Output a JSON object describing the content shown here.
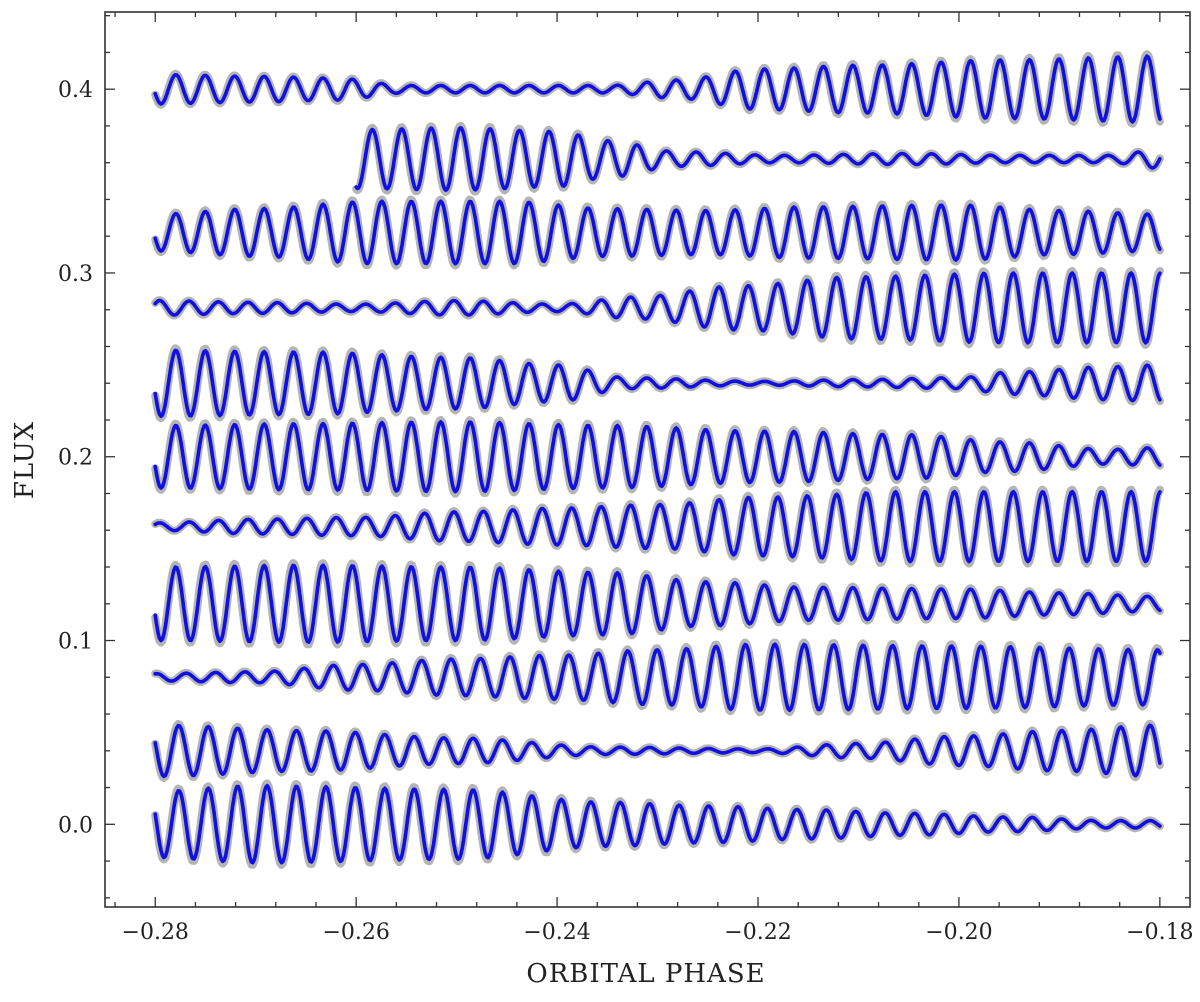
{
  "chart_data": {
    "type": "line",
    "title": "",
    "xlabel": "ORBITAL PHASE",
    "ylabel": "FLUX",
    "xlim": [
      -0.285,
      -0.177
    ],
    "ylim": [
      -0.045,
      0.442
    ],
    "x_ticks": [
      -0.28,
      -0.26,
      -0.24,
      -0.22,
      -0.2,
      -0.18
    ],
    "x_tick_labels": [
      "−0.28",
      "−0.26",
      "−0.24",
      "−0.22",
      "−0.20",
      "−0.18"
    ],
    "y_ticks": [
      0.0,
      0.1,
      0.2,
      0.3,
      0.4
    ],
    "y_tick_labels": [
      "0.0",
      "0.1",
      "0.2",
      "0.3",
      "0.4"
    ],
    "grid": false,
    "legend": "none",
    "colors": {
      "data": "#1010e0",
      "model": "#a8a8a8"
    },
    "oscillation_period": 0.00293,
    "series": [
      {
        "offset": 0.0,
        "x_start": -0.28,
        "x_end": -0.18,
        "phase": 0.45,
        "amp_knots": [
          [
            -0.28,
            0.018
          ],
          [
            -0.27,
            0.021
          ],
          [
            -0.25,
            0.019
          ],
          [
            -0.235,
            0.012
          ],
          [
            -0.225,
            0.01
          ],
          [
            -0.215,
            0.008
          ],
          [
            -0.205,
            0.006
          ],
          [
            -0.195,
            0.004
          ],
          [
            -0.185,
            0.002
          ],
          [
            -0.18,
            0.002
          ]
        ]
      },
      {
        "offset": 0.04,
        "x_start": -0.28,
        "x_end": -0.18,
        "phase": 0.45,
        "amp_knots": [
          [
            -0.28,
            0.014
          ],
          [
            -0.265,
            0.011
          ],
          [
            -0.25,
            0.007
          ],
          [
            -0.235,
            0.002
          ],
          [
            -0.22,
            0.001
          ],
          [
            -0.21,
            0.004
          ],
          [
            -0.2,
            0.008
          ],
          [
            -0.19,
            0.011
          ],
          [
            -0.18,
            0.014
          ]
        ]
      },
      {
        "offset": 0.08,
        "x_start": -0.28,
        "x_end": -0.18,
        "phase": 0.2,
        "amp_knots": [
          [
            -0.28,
            0.002
          ],
          [
            -0.27,
            0.003
          ],
          [
            -0.26,
            0.007
          ],
          [
            -0.25,
            0.01
          ],
          [
            -0.24,
            0.012
          ],
          [
            -0.23,
            0.015
          ],
          [
            -0.22,
            0.018
          ],
          [
            -0.2,
            0.017
          ],
          [
            -0.18,
            0.015
          ]
        ]
      },
      {
        "offset": 0.12,
        "x_start": -0.28,
        "x_end": -0.18,
        "phase": 0.55,
        "amp_knots": [
          [
            -0.28,
            0.02
          ],
          [
            -0.265,
            0.021
          ],
          [
            -0.25,
            0.02
          ],
          [
            -0.235,
            0.017
          ],
          [
            -0.225,
            0.012
          ],
          [
            -0.215,
            0.009
          ],
          [
            -0.2,
            0.008
          ],
          [
            -0.19,
            0.006
          ],
          [
            -0.18,
            0.004
          ]
        ]
      },
      {
        "offset": 0.162,
        "x_start": -0.28,
        "x_end": -0.18,
        "phase": 0.1,
        "amp_knots": [
          [
            -0.28,
            0.002
          ],
          [
            -0.27,
            0.004
          ],
          [
            -0.26,
            0.005
          ],
          [
            -0.25,
            0.008
          ],
          [
            -0.24,
            0.01
          ],
          [
            -0.23,
            0.012
          ],
          [
            -0.22,
            0.016
          ],
          [
            -0.205,
            0.019
          ],
          [
            -0.18,
            0.019
          ]
        ]
      },
      {
        "offset": 0.2,
        "x_start": -0.28,
        "x_end": -0.18,
        "phase": 0.55,
        "amp_knots": [
          [
            -0.28,
            0.017
          ],
          [
            -0.265,
            0.018
          ],
          [
            -0.25,
            0.019
          ],
          [
            -0.235,
            0.017
          ],
          [
            -0.22,
            0.014
          ],
          [
            -0.205,
            0.012
          ],
          [
            -0.195,
            0.008
          ],
          [
            -0.185,
            0.004
          ],
          [
            -0.18,
            0.005
          ]
        ]
      },
      {
        "offset": 0.24,
        "x_start": -0.28,
        "x_end": -0.18,
        "phase": 0.55,
        "amp_knots": [
          [
            -0.28,
            0.018
          ],
          [
            -0.265,
            0.017
          ],
          [
            -0.25,
            0.014
          ],
          [
            -0.24,
            0.01
          ],
          [
            -0.233,
            0.003
          ],
          [
            -0.22,
            0.001
          ],
          [
            -0.21,
            0.002
          ],
          [
            -0.2,
            0.003
          ],
          [
            -0.195,
            0.006
          ],
          [
            -0.185,
            0.009
          ],
          [
            -0.18,
            0.01
          ]
        ]
      },
      {
        "offset": 0.281,
        "x_start": -0.28,
        "x_end": -0.18,
        "phase": 0.1,
        "amp_knots": [
          [
            -0.28,
            0.004
          ],
          [
            -0.27,
            0.003
          ],
          [
            -0.26,
            0.002
          ],
          [
            -0.25,
            0.004
          ],
          [
            -0.24,
            0.002
          ],
          [
            -0.232,
            0.006
          ],
          [
            -0.222,
            0.012
          ],
          [
            -0.21,
            0.017
          ],
          [
            -0.195,
            0.019
          ],
          [
            -0.18,
            0.019
          ]
        ]
      },
      {
        "offset": 0.322,
        "x_start": -0.28,
        "x_end": -0.18,
        "phase": 0.55,
        "amp_knots": [
          [
            -0.28,
            0.01
          ],
          [
            -0.27,
            0.013
          ],
          [
            -0.258,
            0.017
          ],
          [
            -0.245,
            0.017
          ],
          [
            -0.235,
            0.013
          ],
          [
            -0.225,
            0.012
          ],
          [
            -0.215,
            0.014
          ],
          [
            -0.2,
            0.015
          ],
          [
            -0.19,
            0.012
          ],
          [
            -0.18,
            0.01
          ]
        ]
      },
      {
        "offset": 0.362,
        "x_start": -0.26,
        "x_end": -0.18,
        "phase": 0.7,
        "amp_knots": [
          [
            -0.26,
            0.016
          ],
          [
            -0.25,
            0.017
          ],
          [
            -0.24,
            0.015
          ],
          [
            -0.235,
            0.01
          ],
          [
            -0.228,
            0.004
          ],
          [
            -0.218,
            0.002
          ],
          [
            -0.205,
            0.003
          ],
          [
            -0.195,
            0.002
          ],
          [
            -0.185,
            0.002
          ],
          [
            -0.18,
            0.005
          ]
        ]
      },
      {
        "offset": 0.4,
        "x_start": -0.28,
        "x_end": -0.18,
        "phase": 0.55,
        "amp_knots": [
          [
            -0.28,
            0.008
          ],
          [
            -0.27,
            0.007
          ],
          [
            -0.262,
            0.006
          ],
          [
            -0.255,
            0.002
          ],
          [
            -0.245,
            0.002
          ],
          [
            -0.235,
            0.002
          ],
          [
            -0.228,
            0.005
          ],
          [
            -0.22,
            0.011
          ],
          [
            -0.21,
            0.013
          ],
          [
            -0.195,
            0.016
          ],
          [
            -0.18,
            0.018
          ]
        ]
      }
    ]
  }
}
